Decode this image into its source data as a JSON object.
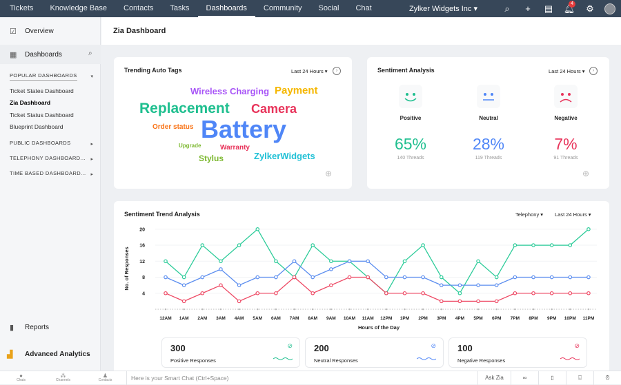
{
  "topnav": {
    "items": [
      "Tickets",
      "Knowledge Base",
      "Contacts",
      "Tasks",
      "Dashboards",
      "Community",
      "Social",
      "Chat"
    ],
    "active": "Dashboards",
    "org": "Zylker Widgets Inc",
    "notification_count": "4"
  },
  "sidebar": {
    "overview": "Overview",
    "dashboards": "Dashboards",
    "popular_header": "POPULAR DASHBOARDS",
    "popular": [
      "Ticket States Dashboard",
      "Zia Dashboard",
      "Ticket Status Dashboard",
      "Blueprint Dashboard"
    ],
    "active": "Zia Dashboard",
    "sections": [
      "PUBLIC DASHBOARDS",
      "TELEPHONY DASHBOARD...",
      "TIME BASED DASHBOARD..."
    ],
    "reports": "Reports",
    "advanced": "Advanced Analytics"
  },
  "header": {
    "title": "Zia Dashboard"
  },
  "tags": {
    "title": "Trending Auto Tags",
    "range": "Last 24 Hours",
    "words": [
      {
        "t": "Wireless Charging",
        "c": "#a855f7"
      },
      {
        "t": "Payment",
        "c": "#f5b700"
      },
      {
        "t": "Replacement",
        "c": "#1fbf8f"
      },
      {
        "t": "Camera",
        "c": "#e8335a"
      },
      {
        "t": "Order status",
        "c": "#f97316"
      },
      {
        "t": "Battery",
        "c": "#4f86f7"
      },
      {
        "t": "Upgrade",
        "c": "#7cb82f"
      },
      {
        "t": "Warranty",
        "c": "#e8335a"
      },
      {
        "t": "Stylus",
        "c": "#7cb82f"
      },
      {
        "t": "ZylkerWidgets",
        "c": "#22c1d6"
      }
    ]
  },
  "sentiment": {
    "title": "Sentiment Analysis",
    "range": "Last 24 Hours",
    "items": [
      {
        "label": "Positive",
        "pct": "65%",
        "threads": "140 Threads",
        "color": "#1fbf8f"
      },
      {
        "label": "Neutral",
        "pct": "28%",
        "threads": "119 Threads",
        "color": "#4f86f7"
      },
      {
        "label": "Negative",
        "pct": "7%",
        "threads": "91 Threads",
        "color": "#e8335a"
      }
    ]
  },
  "trend": {
    "title": "Sentiment Trend Analysis",
    "channel": "Telephony",
    "range": "Last 24 Hours"
  },
  "chart_data": {
    "type": "line",
    "xlabel": "Hours of the Day",
    "ylabel": "No. of Responses",
    "ylim": [
      0,
      20
    ],
    "yticks": [
      4,
      8,
      12,
      16,
      20
    ],
    "grid": true,
    "categories": [
      "12AM",
      "1AM",
      "2AM",
      "3AM",
      "4AM",
      "5AM",
      "6AM",
      "7AM",
      "8AM",
      "9AM",
      "10AM",
      "11AM",
      "12PM",
      "1PM",
      "2PM",
      "3PM",
      "4PM",
      "5PM",
      "6PM",
      "7PM",
      "8PM",
      "9PM",
      "10PM",
      "11PM"
    ],
    "series": [
      {
        "color": "#2ecc9a",
        "values": [
          12,
          8,
          16,
          12,
          16,
          20,
          12,
          8,
          16,
          12,
          12,
          8,
          4,
          12,
          16,
          8,
          4,
          12,
          8,
          16,
          16,
          16,
          16,
          20
        ]
      },
      {
        "color": "#5b8def",
        "values": [
          8,
          6,
          8,
          10,
          6,
          8,
          8,
          12,
          8,
          10,
          12,
          12,
          8,
          8,
          8,
          6,
          6,
          6,
          6,
          8,
          8,
          8,
          8,
          8
        ]
      },
      {
        "color": "#ee4a65",
        "values": [
          4,
          2,
          4,
          6,
          2,
          4,
          4,
          8,
          4,
          6,
          8,
          8,
          4,
          4,
          4,
          2,
          2,
          2,
          2,
          4,
          4,
          4,
          4,
          4
        ]
      }
    ]
  },
  "stats": [
    {
      "n": "300",
      "l": "Positive Responses",
      "c": "#1fbf8f"
    },
    {
      "n": "200",
      "l": "Neutral Responses",
      "c": "#4f86f7"
    },
    {
      "n": "100",
      "l": "Negative Responses",
      "c": "#e8335a"
    }
  ],
  "bottombar": {
    "chats": "Chats",
    "channels": "Channels",
    "contacts": "Contacts",
    "smart_chat_placeholder": "Here is your Smart Chat (Ctrl+Space)",
    "ask_zia": "Ask Zia"
  }
}
